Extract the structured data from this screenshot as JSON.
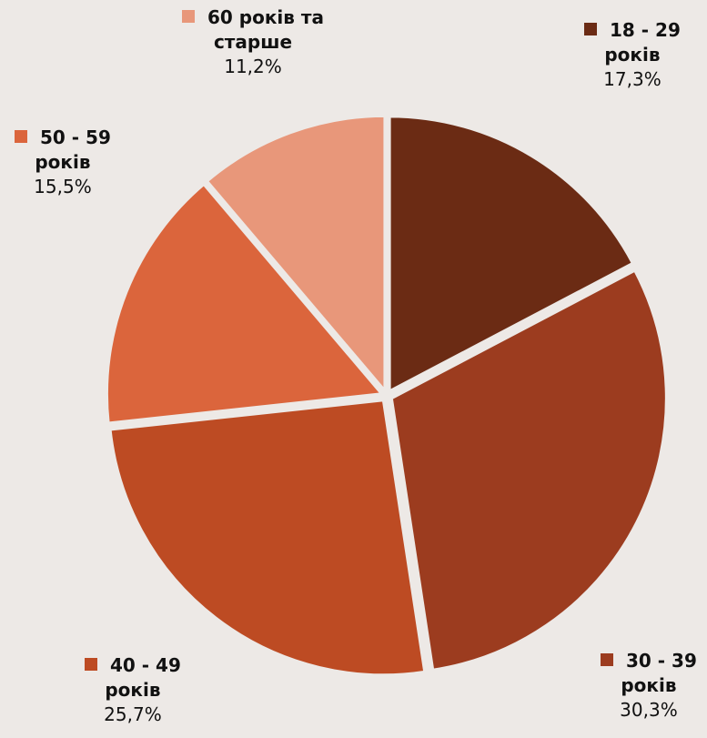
{
  "chart_data": {
    "type": "pie",
    "start_angle_deg": 0,
    "direction": "clockwise",
    "slices": [
      {
        "line1": "18 - 29",
        "line2": "років",
        "value": 17.3,
        "value_label": "17,3%",
        "color": "#6b2b14"
      },
      {
        "line1": "30 - 39",
        "line2": "років",
        "value": 30.3,
        "value_label": "30,3%",
        "color": "#9c3c1f"
      },
      {
        "line1": "40 - 49",
        "line2": "років",
        "value": 25.7,
        "value_label": "25,7%",
        "color": "#bd4b23"
      },
      {
        "line1": "50 - 59",
        "line2": "років",
        "value": 15.5,
        "value_label": "15,5%",
        "color": "#db653c"
      },
      {
        "line1": "60 років та",
        "line2": "старше",
        "value": 11.2,
        "value_label": "11,2%",
        "color": "#e8977a"
      }
    ]
  }
}
